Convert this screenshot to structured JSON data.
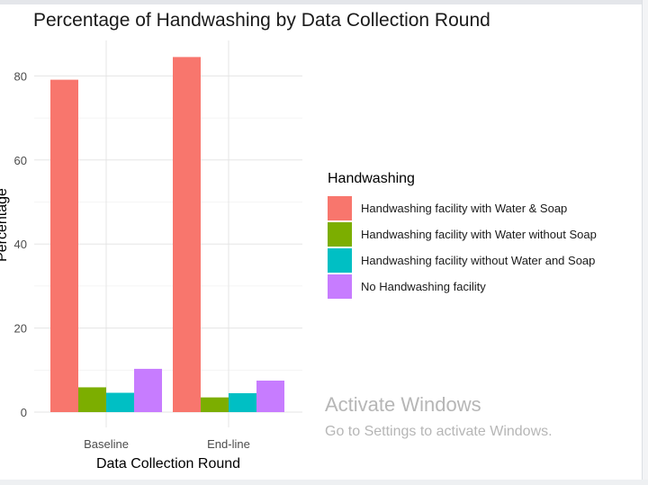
{
  "chart_data": {
    "type": "bar",
    "title": "Percentage of Handwashing by Data Collection Round",
    "xlabel": "Data Collection Round",
    "ylabel": "Percentage",
    "categories": [
      "Baseline",
      "End-line"
    ],
    "ylim": [
      0,
      88
    ],
    "yticks": [
      0,
      20,
      40,
      60,
      80
    ],
    "grid": true,
    "legend_title": "Handwashing",
    "legend_position": "right",
    "series": [
      {
        "name": "Handwashing facility with Water & Soap",
        "color": "#F8766D",
        "values": [
          79.1,
          84.5
        ]
      },
      {
        "name": "Handwashing facility with Water without Soap",
        "color": "#7CAE00",
        "values": [
          5.9,
          3.5
        ]
      },
      {
        "name": "Handwashing facility without Water and Soap",
        "color": "#00BFC4",
        "values": [
          4.6,
          4.5
        ]
      },
      {
        "name": "No Handwashing facility",
        "color": "#C77CFF",
        "values": [
          10.3,
          7.5
        ]
      }
    ]
  },
  "watermark": {
    "title": "Activate Windows",
    "subtitle": "Go to Settings to activate Windows."
  }
}
